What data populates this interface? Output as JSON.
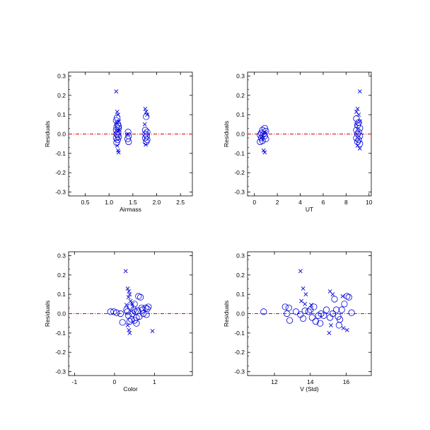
{
  "colors": {
    "points": "#0000dd",
    "zero_line": "#dd0000",
    "axes": "#000000"
  },
  "chart_data": [
    {
      "type": "scatter",
      "id": "airmass",
      "xlabel": "Airmass",
      "ylabel": "Residuals",
      "xlim": [
        0.15,
        2.75
      ],
      "ylim": [
        -0.32,
        0.32
      ],
      "xticks": [
        0.5,
        1.0,
        1.5,
        2.0,
        2.5
      ],
      "xtick_labels": [
        "0.5",
        "1.0",
        "1.5",
        "2.0",
        "2.5"
      ],
      "yticks": [
        -0.3,
        -0.2,
        -0.1,
        0.0,
        0.1,
        0.2,
        0.3
      ],
      "ytick_labels": [
        "-0.3",
        "-0.2",
        "-0.1",
        "0.0",
        "0.1",
        "0.2",
        "0.3"
      ],
      "reference_line_y": 0.0,
      "series": [
        {
          "marker": "circle",
          "points": [
            [
              1.17,
              0.085
            ],
            [
              1.15,
              0.07
            ],
            [
              1.18,
              0.05
            ],
            [
              1.16,
              0.035
            ],
            [
              1.2,
              0.03
            ],
            [
              1.15,
              0.02
            ],
            [
              1.19,
              0.01
            ],
            [
              1.16,
              0.0
            ],
            [
              1.18,
              -0.005
            ],
            [
              1.2,
              -0.015
            ],
            [
              1.15,
              -0.02
            ],
            [
              1.18,
              -0.03
            ],
            [
              1.16,
              -0.045
            ],
            [
              1.2,
              0.04
            ],
            [
              1.4,
              0.01
            ],
            [
              1.41,
              -0.01
            ],
            [
              1.39,
              -0.025
            ],
            [
              1.41,
              -0.04
            ],
            [
              1.78,
              0.09
            ],
            [
              1.76,
              0.02
            ],
            [
              1.8,
              0.01
            ],
            [
              1.77,
              0.0
            ],
            [
              1.79,
              -0.01
            ],
            [
              1.76,
              -0.02
            ],
            [
              1.8,
              -0.03
            ],
            [
              1.78,
              -0.04
            ]
          ]
        },
        {
          "marker": "cross",
          "points": [
            [
              1.15,
              0.22
            ],
            [
              1.17,
              0.115
            ],
            [
              1.19,
              0.1
            ],
            [
              1.16,
              0.06
            ],
            [
              1.2,
              0.02
            ],
            [
              1.17,
              -0.06
            ],
            [
              1.19,
              -0.085
            ],
            [
              1.2,
              -0.095
            ],
            [
              1.21,
              0.065
            ],
            [
              1.4,
              0.0
            ],
            [
              1.76,
              0.13
            ],
            [
              1.78,
              0.115
            ],
            [
              1.8,
              0.1
            ],
            [
              1.75,
              0.05
            ],
            [
              1.77,
              -0.055
            ]
          ]
        }
      ]
    },
    {
      "type": "scatter",
      "id": "ut",
      "xlabel": "UT",
      "ylabel": "Residuals",
      "xlim": [
        -0.6,
        10.2
      ],
      "ylim": [
        -0.32,
        0.32
      ],
      "xticks": [
        0,
        2,
        4,
        6,
        8,
        10
      ],
      "xtick_labels": [
        "0",
        "2",
        "4",
        "6",
        "8",
        "10"
      ],
      "yticks": [
        -0.3,
        -0.2,
        -0.1,
        0.0,
        0.1,
        0.2,
        0.3
      ],
      "ytick_labels": [
        "-0.3",
        "-0.2",
        "-0.1",
        "0.0",
        "0.1",
        "0.2",
        "0.3"
      ],
      "reference_line_y": 0.0,
      "series": [
        {
          "marker": "circle",
          "points": [
            [
              0.9,
              0.03
            ],
            [
              0.7,
              0.02
            ],
            [
              1.0,
              0.015
            ],
            [
              0.6,
              0.005
            ],
            [
              0.8,
              0.0
            ],
            [
              0.5,
              -0.005
            ],
            [
              0.9,
              -0.01
            ],
            [
              0.6,
              -0.02
            ],
            [
              1.0,
              -0.025
            ],
            [
              0.7,
              -0.035
            ],
            [
              0.5,
              -0.04
            ],
            [
              8.9,
              0.08
            ],
            [
              9.1,
              0.06
            ],
            [
              9.0,
              0.045
            ],
            [
              9.2,
              0.03
            ],
            [
              8.9,
              0.02
            ],
            [
              9.1,
              0.01
            ],
            [
              9.0,
              0.0
            ],
            [
              9.2,
              -0.01
            ],
            [
              8.9,
              -0.02
            ],
            [
              9.1,
              -0.03
            ],
            [
              9.0,
              -0.04
            ],
            [
              9.2,
              -0.05
            ]
          ]
        },
        {
          "marker": "cross",
          "points": [
            [
              0.8,
              -0.085
            ],
            [
              0.9,
              -0.095
            ],
            [
              0.6,
              -0.02
            ],
            [
              1.0,
              0.005
            ],
            [
              9.2,
              0.22
            ],
            [
              9.0,
              0.13
            ],
            [
              8.9,
              0.115
            ],
            [
              9.1,
              0.1
            ],
            [
              9.2,
              0.065
            ],
            [
              8.9,
              0.05
            ],
            [
              9.0,
              -0.06
            ],
            [
              9.2,
              -0.075
            ]
          ]
        }
      ]
    },
    {
      "type": "scatter",
      "id": "color",
      "xlabel": "Color",
      "ylabel": "Residuals",
      "xlim": [
        -1.15,
        1.95
      ],
      "ylim": [
        -0.32,
        0.32
      ],
      "xticks": [
        -1,
        0,
        1
      ],
      "xtick_labels": [
        "-1",
        "0",
        "1"
      ],
      "yticks": [
        -0.3,
        -0.2,
        -0.1,
        0.0,
        0.1,
        0.2,
        0.3
      ],
      "ytick_labels": [
        "-0.3",
        "-0.2",
        "-0.1",
        "0.0",
        "0.1",
        "0.2",
        "0.3"
      ],
      "reference_line_y": 0.0,
      "series": [
        {
          "marker": "circle",
          "points": [
            [
              -0.1,
              0.01
            ],
            [
              -0.02,
              0.01
            ],
            [
              0.05,
              0.005
            ],
            [
              0.15,
              0.0
            ],
            [
              0.2,
              -0.045
            ],
            [
              0.3,
              0.02
            ],
            [
              0.35,
              -0.01
            ],
            [
              0.4,
              0.035
            ],
            [
              0.42,
              -0.03
            ],
            [
              0.45,
              0.0
            ],
            [
              0.5,
              0.05
            ],
            [
              0.52,
              0.01
            ],
            [
              0.55,
              -0.02
            ],
            [
              0.58,
              0.015
            ],
            [
              0.6,
              0.09
            ],
            [
              0.62,
              -0.015
            ],
            [
              0.65,
              0.085
            ],
            [
              0.7,
              0.02
            ],
            [
              0.72,
              0.0
            ],
            [
              0.78,
              0.03
            ],
            [
              0.8,
              -0.005
            ],
            [
              0.82,
              0.025
            ],
            [
              0.85,
              0.035
            ],
            [
              0.5,
              -0.035
            ],
            [
              0.38,
              -0.04
            ],
            [
              0.48,
              0.02
            ],
            [
              0.55,
              -0.05
            ],
            [
              0.32,
              0.01
            ],
            [
              0.68,
              0.03
            ]
          ]
        },
        {
          "marker": "cross",
          "points": [
            [
              0.28,
              0.22
            ],
            [
              0.33,
              0.13
            ],
            [
              0.36,
              0.115
            ],
            [
              0.38,
              0.1
            ],
            [
              0.35,
              0.085
            ],
            [
              0.4,
              0.065
            ],
            [
              0.3,
              0.045
            ],
            [
              0.33,
              -0.06
            ],
            [
              0.36,
              -0.085
            ],
            [
              0.38,
              -0.1
            ],
            [
              0.45,
              0.05
            ],
            [
              0.95,
              -0.09
            ]
          ]
        }
      ]
    },
    {
      "type": "scatter",
      "id": "v-std",
      "xlabel": "V (Std)",
      "ylabel": "Residuals",
      "xlim": [
        10.5,
        17.4
      ],
      "ylim": [
        -0.32,
        0.32
      ],
      "xticks": [
        12,
        14,
        16
      ],
      "xtick_labels": [
        "12",
        "14",
        "16"
      ],
      "yticks": [
        -0.3,
        -0.2,
        -0.1,
        0.0,
        0.1,
        0.2,
        0.3
      ],
      "ytick_labels": [
        "-0.3",
        "-0.2",
        "-0.1",
        "0.0",
        "0.1",
        "0.2",
        "0.3"
      ],
      "reference_line_y": 0.0,
      "series": [
        {
          "marker": "circle",
          "points": [
            [
              11.4,
              0.01
            ],
            [
              12.6,
              0.035
            ],
            [
              12.8,
              0.03
            ],
            [
              12.7,
              0.0
            ],
            [
              12.85,
              -0.035
            ],
            [
              13.2,
              0.01
            ],
            [
              13.45,
              -0.005
            ],
            [
              13.6,
              -0.025
            ],
            [
              13.7,
              0.015
            ],
            [
              13.9,
              0.01
            ],
            [
              14.0,
              0.02
            ],
            [
              14.1,
              -0.02
            ],
            [
              14.2,
              0.035
            ],
            [
              14.3,
              -0.04
            ],
            [
              14.45,
              -0.01
            ],
            [
              14.6,
              0.0
            ],
            [
              14.75,
              -0.01
            ],
            [
              14.9,
              0.02
            ],
            [
              15.1,
              -0.02
            ],
            [
              15.25,
              0.0
            ],
            [
              15.35,
              0.075
            ],
            [
              15.45,
              0.02
            ],
            [
              15.55,
              -0.015
            ],
            [
              15.6,
              -0.06
            ],
            [
              15.75,
              0.02
            ],
            [
              15.9,
              0.05
            ],
            [
              16.05,
              0.09
            ],
            [
              16.15,
              0.085
            ],
            [
              16.3,
              0.005
            ],
            [
              15.65,
              -0.03
            ],
            [
              14.55,
              -0.05
            ]
          ]
        },
        {
          "marker": "cross",
          "points": [
            [
              13.45,
              0.22
            ],
            [
              13.6,
              0.13
            ],
            [
              13.75,
              0.1
            ],
            [
              13.5,
              0.065
            ],
            [
              13.7,
              0.05
            ],
            [
              15.1,
              0.115
            ],
            [
              15.25,
              0.1
            ],
            [
              15.05,
              -0.1
            ],
            [
              15.15,
              -0.06
            ],
            [
              15.8,
              0.09
            ],
            [
              15.85,
              -0.075
            ],
            [
              16.05,
              -0.085
            ],
            [
              14.05,
              0.045
            ]
          ]
        }
      ]
    }
  ]
}
